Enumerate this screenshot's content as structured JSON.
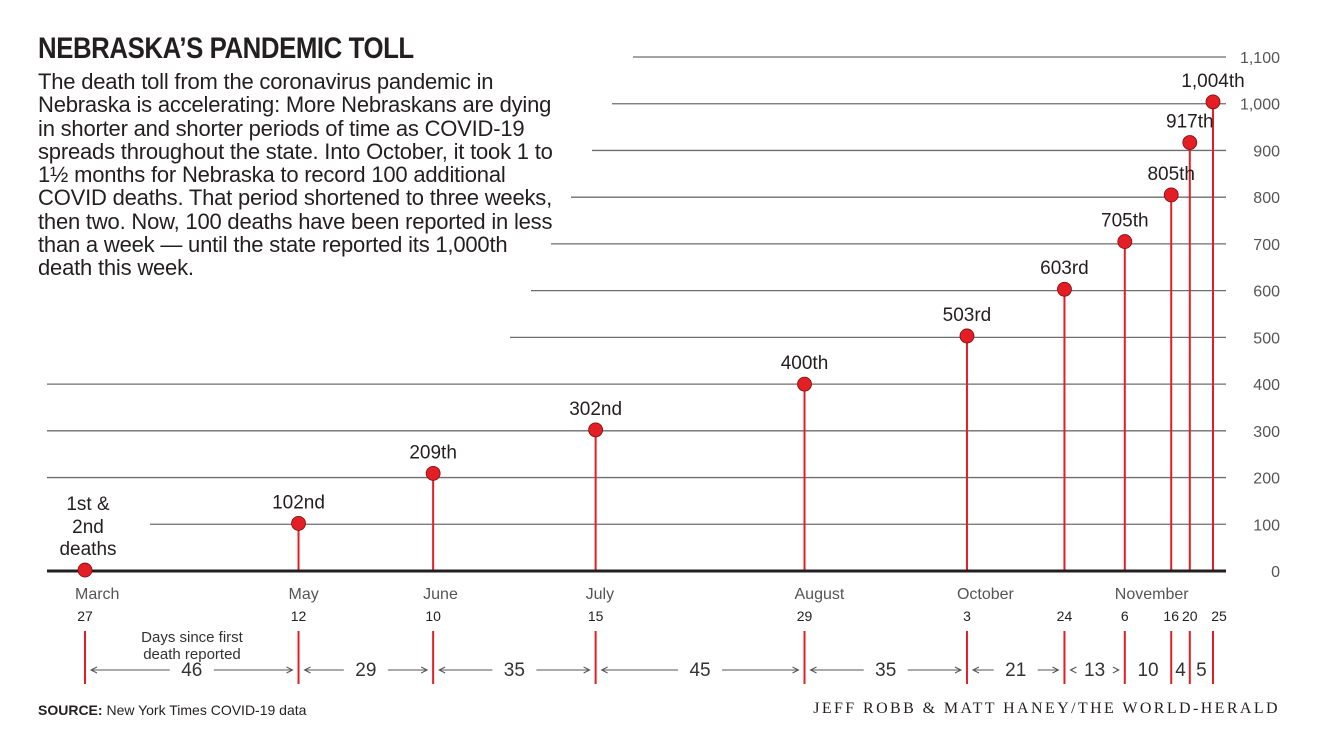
{
  "header": {
    "title": "NEBRASKA’S PANDEMIC TOLL",
    "description": "The death toll from the coronavirus pandemic in Nebraska is accelerating: More Nebraskans are dying in shorter and shorter periods of time as COVID-19 spreads throughout the state. Into October, it took 1 to 1½ months for Nebraska to record 100 additional COVID deaths. That period shortened to three weeks, then two. Now, 100 deaths have been reported in less than a week — until the state reported its 1,000th death this week."
  },
  "footer": {
    "source_label": "SOURCE:",
    "source_text": "New York Times COVID-19 data",
    "credit": "JEFF ROBB & MATT HANEY/THE WORLD-HERALD"
  },
  "chart_data": {
    "type": "lollipop",
    "y_ticks": [
      "0",
      "100",
      "200",
      "300",
      "400",
      "500",
      "600",
      "700",
      "800",
      "900",
      "1,000",
      "1,100"
    ],
    "ylim": [
      0,
      1100
    ],
    "points": [
      {
        "date": "2020-03-27",
        "day": "27",
        "deaths": 2,
        "label": "1st & 2nd deaths"
      },
      {
        "date": "2020-05-12",
        "day": "12",
        "deaths": 102,
        "label": "102nd"
      },
      {
        "date": "2020-06-10",
        "day": "10",
        "deaths": 209,
        "label": "209th"
      },
      {
        "date": "2020-07-15",
        "day": "15",
        "deaths": 302,
        "label": "302nd"
      },
      {
        "date": "2020-08-29",
        "day": "29",
        "deaths": 400,
        "label": "400th"
      },
      {
        "date": "2020-10-03",
        "day": "3",
        "deaths": 503,
        "label": "503rd"
      },
      {
        "date": "2020-10-24",
        "day": "24",
        "deaths": 603,
        "label": "603rd"
      },
      {
        "date": "2020-11-06",
        "day": "6",
        "deaths": 705,
        "label": "705th"
      },
      {
        "date": "2020-11-16",
        "day": "16",
        "deaths": 805,
        "label": "805th"
      },
      {
        "date": "2020-11-20",
        "day": "20",
        "deaths": 917,
        "label": "917th"
      },
      {
        "date": "2020-11-25",
        "day": "25",
        "deaths": 1004,
        "label": "1,004th"
      }
    ],
    "months": [
      {
        "name": "March",
        "date": "2020-03-27"
      },
      {
        "name": "May",
        "date": "2020-05-12"
      },
      {
        "name": "June",
        "date": "2020-06-10"
      },
      {
        "name": "July",
        "date": "2020-07-15"
      },
      {
        "name": "August",
        "date": "2020-08-29"
      },
      {
        "name": "October",
        "date": "2020-10-03"
      },
      {
        "name": "November",
        "date": "2020-11-06"
      }
    ],
    "intervals_caption": "Days since first death reported",
    "intervals": [
      "46",
      "29",
      "35",
      "45",
      "35",
      "21",
      "13",
      "10",
      "4",
      "5"
    ],
    "colors": {
      "point": "#e31e24",
      "stem": "#e31e24",
      "grid": "#6d6e71",
      "axis": "#231f20"
    }
  }
}
